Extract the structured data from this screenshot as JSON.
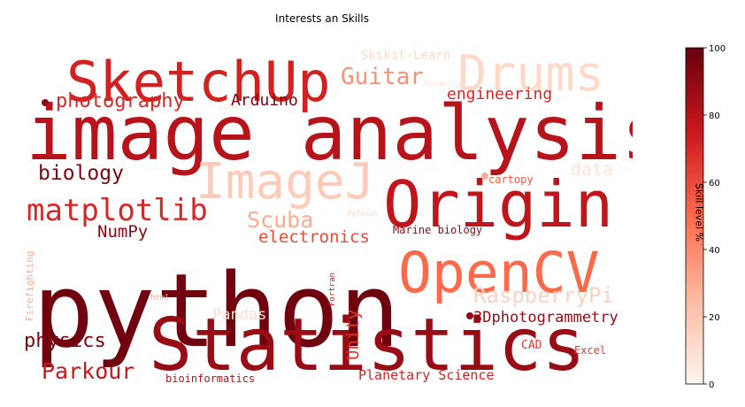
{
  "chart_data": {
    "type": "wordcloud",
    "title": "Interests an Skills",
    "colorbar": {
      "label": "Skill level %",
      "range": [
        0,
        100
      ],
      "ticks": [
        "0",
        "20",
        "40",
        "60",
        "80",
        "100"
      ],
      "colormap": "Reds"
    },
    "words": [
      {
        "text": "python",
        "value": 98
      },
      {
        "text": "image analysis",
        "value": 80
      },
      {
        "text": "Statistics",
        "value": 88
      },
      {
        "text": "SketchUp",
        "value": 72
      },
      {
        "text": "Origin",
        "value": 78
      },
      {
        "text": "OpenCV",
        "value": 50
      },
      {
        "text": "Drums",
        "value": 12
      },
      {
        "text": "ImageJ",
        "value": 18
      },
      {
        "text": "matplotlib",
        "value": 70
      },
      {
        "text": "Guitar",
        "value": 38
      },
      {
        "text": "photography",
        "value": 70
      },
      {
        "text": "biology",
        "value": 95
      },
      {
        "text": "Arduino",
        "value": 95
      },
      {
        "text": "engineering",
        "value": 70
      },
      {
        "text": "Scuba",
        "value": 30
      },
      {
        "text": "NumPy",
        "value": 92
      },
      {
        "text": "electronics",
        "value": 60
      },
      {
        "text": "RaspberryPi",
        "value": 15
      },
      {
        "text": "physics",
        "value": 95
      },
      {
        "text": "Parkour",
        "value": 75
      },
      {
        "text": "Pandas",
        "value": 10
      },
      {
        "text": "Unity",
        "value": 65
      },
      {
        "text": "3Dphotogrammetry",
        "value": 88
      },
      {
        "text": "Planetary Science",
        "value": 72
      },
      {
        "text": "bioinformatics",
        "value": 80
      },
      {
        "text": "Marine biology",
        "value": 90
      },
      {
        "text": "cartopy",
        "value": 55
      },
      {
        "text": "data",
        "value": 8
      },
      {
        "text": "Skikit-Learn",
        "value": 12
      },
      {
        "text": "CAD",
        "value": 65
      },
      {
        "text": "Excel",
        "value": 65
      },
      {
        "text": "Fortran",
        "value": 75
      },
      {
        "text": "Firefighting",
        "value": 30
      },
      {
        "text": "html",
        "value": 30
      },
      {
        "text": "PyTorch",
        "value": 15
      },
      {
        "text": "Tensorflow",
        "value": 8
      },
      {
        "text": "circuits",
        "value": 10
      }
    ]
  }
}
